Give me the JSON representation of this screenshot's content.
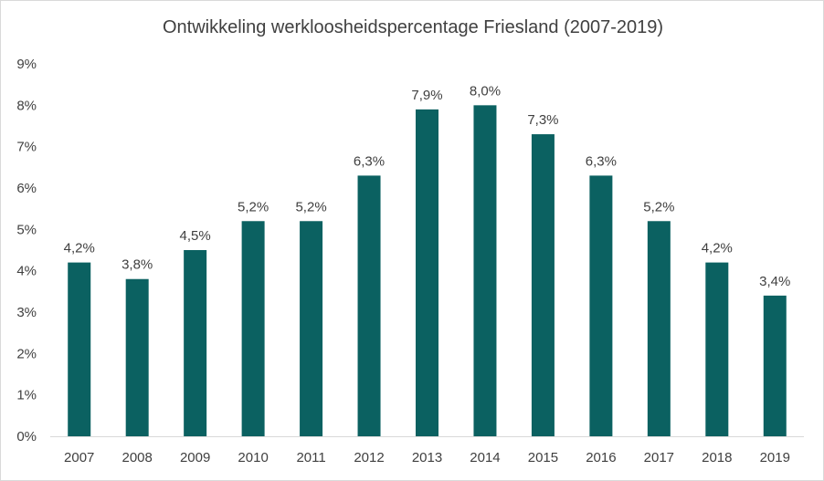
{
  "chart_data": {
    "type": "bar",
    "title": "Ontwikkeling werkloosheidspercentage Friesland (2007-2019)",
    "xlabel": "",
    "ylabel": "",
    "categories": [
      "2007",
      "2008",
      "2009",
      "2010",
      "2011",
      "2012",
      "2013",
      "2014",
      "2015",
      "2016",
      "2017",
      "2018",
      "2019"
    ],
    "values": [
      4.2,
      3.8,
      4.5,
      5.2,
      5.2,
      6.3,
      7.9,
      8.0,
      7.3,
      6.3,
      5.2,
      4.2,
      3.4
    ],
    "data_labels": [
      "4,2%",
      "3,8%",
      "4,5%",
      "5,2%",
      "5,2%",
      "6,3%",
      "7,9%",
      "8,0%",
      "7,3%",
      "6,3%",
      "5,2%",
      "4,2%",
      "3,4%"
    ],
    "y_ticks": [
      0,
      1,
      2,
      3,
      4,
      5,
      6,
      7,
      8,
      9
    ],
    "y_tick_labels": [
      "0%",
      "1%",
      "2%",
      "3%",
      "4%",
      "5%",
      "6%",
      "7%",
      "8%",
      "9%"
    ],
    "ylim": [
      0,
      9
    ],
    "grid": false,
    "legend": "none",
    "bar_color": "#0b6161"
  }
}
